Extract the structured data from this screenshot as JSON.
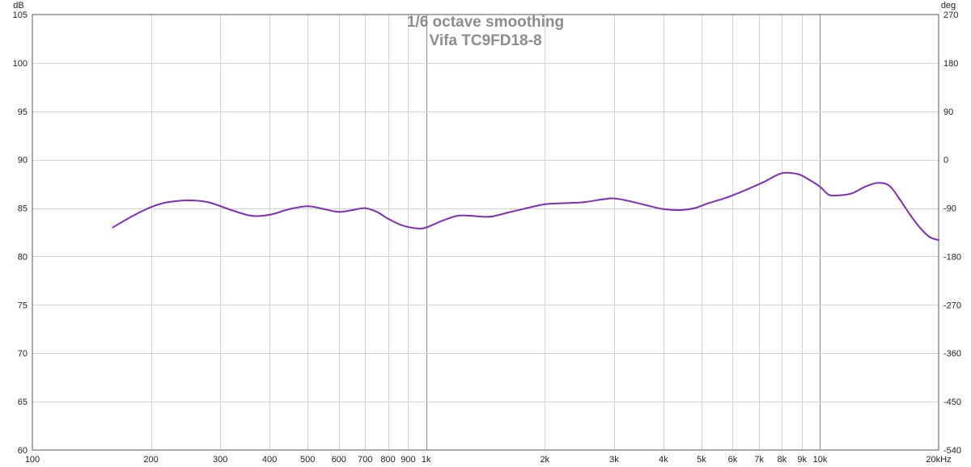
{
  "chart_data": {
    "type": "line",
    "title": "1/6 octave smoothing",
    "subtitle": "Vifa TC9FD18-8",
    "x_scale": "log",
    "xlim": [
      100,
      20000
    ],
    "ylim": [
      60,
      105
    ],
    "y2lim": [
      -540,
      270
    ],
    "y_unit": "dB",
    "y2_unit": "deg",
    "grid": true,
    "x_ticks": [
      {
        "value": 100,
        "label": "100"
      },
      {
        "value": 200,
        "label": "200"
      },
      {
        "value": 300,
        "label": "300"
      },
      {
        "value": 400,
        "label": "400"
      },
      {
        "value": 500,
        "label": "500"
      },
      {
        "value": 600,
        "label": "600"
      },
      {
        "value": 700,
        "label": "700"
      },
      {
        "value": 800,
        "label": "800"
      },
      {
        "value": 900,
        "label": "900"
      },
      {
        "value": 1000,
        "label": "1k"
      },
      {
        "value": 2000,
        "label": "2k"
      },
      {
        "value": 3000,
        "label": "3k"
      },
      {
        "value": 4000,
        "label": "4k"
      },
      {
        "value": 5000,
        "label": "5k"
      },
      {
        "value": 6000,
        "label": "6k"
      },
      {
        "value": 7000,
        "label": "7k"
      },
      {
        "value": 8000,
        "label": "8k"
      },
      {
        "value": 9000,
        "label": "9k"
      },
      {
        "value": 10000,
        "label": "10k"
      },
      {
        "value": 20000,
        "label": "20kHz"
      }
    ],
    "y_ticks": [
      {
        "value": 105,
        "label": "105"
      },
      {
        "value": 100,
        "label": "100"
      },
      {
        "value": 95,
        "label": "95"
      },
      {
        "value": 90,
        "label": "90"
      },
      {
        "value": 85,
        "label": "85"
      },
      {
        "value": 80,
        "label": "80"
      },
      {
        "value": 75,
        "label": "75"
      },
      {
        "value": 70,
        "label": "70"
      },
      {
        "value": 65,
        "label": "65"
      },
      {
        "value": 60,
        "label": "60"
      }
    ],
    "y2_ticks": [
      {
        "value": 270,
        "label": "270"
      },
      {
        "value": 180,
        "label": "180"
      },
      {
        "value": 90,
        "label": "90"
      },
      {
        "value": 0,
        "label": "0"
      },
      {
        "value": -90,
        "label": "-90"
      },
      {
        "value": -180,
        "label": "-180"
      },
      {
        "value": -270,
        "label": "-270"
      },
      {
        "value": -360,
        "label": "-360"
      },
      {
        "value": -450,
        "label": "-450"
      },
      {
        "value": -540,
        "label": "-540"
      }
    ],
    "series": [
      {
        "color": "#7d2fb5",
        "x": [
          160,
          180,
          200,
          220,
          250,
          280,
          320,
          360,
          400,
          450,
          500,
          550,
          600,
          650,
          700,
          750,
          800,
          870,
          950,
          1000,
          1100,
          1200,
          1300,
          1450,
          1600,
          1800,
          2000,
          2200,
          2500,
          2800,
          3000,
          3300,
          3700,
          4000,
          4400,
          4800,
          5200,
          5800,
          6500,
          7200,
          8000,
          8800,
          9400,
          10000,
          10500,
          11000,
          12000,
          13000,
          14000,
          15000,
          16000,
          17000,
          18000,
          19000,
          20000
        ],
        "y": [
          83.0,
          84.2,
          85.1,
          85.6,
          85.8,
          85.6,
          84.8,
          84.2,
          84.3,
          84.9,
          85.2,
          84.9,
          84.6,
          84.8,
          85.0,
          84.6,
          83.9,
          83.2,
          82.9,
          83.0,
          83.7,
          84.2,
          84.2,
          84.1,
          84.5,
          85.0,
          85.4,
          85.5,
          85.6,
          85.9,
          86.0,
          85.7,
          85.2,
          84.9,
          84.8,
          85.0,
          85.5,
          86.1,
          86.9,
          87.7,
          88.6,
          88.5,
          87.9,
          87.2,
          86.4,
          86.3,
          86.5,
          87.2,
          87.6,
          87.3,
          85.8,
          84.2,
          82.9,
          82.0,
          81.7
        ]
      }
    ]
  }
}
